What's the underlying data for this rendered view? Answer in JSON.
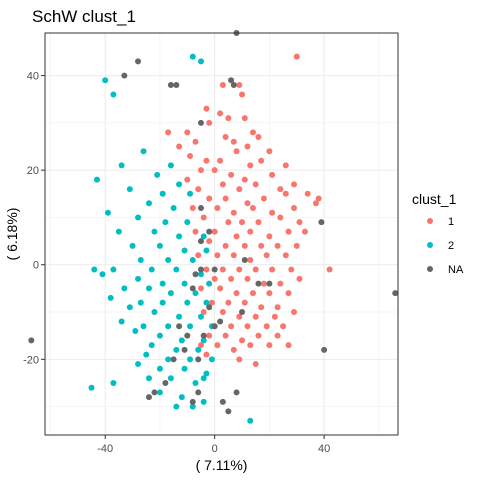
{
  "chart_data": {
    "type": "scatter",
    "title": "SchW clust_1",
    "xlabel": "( 7.11%)",
    "ylabel": "( 6.18%)",
    "xlim": [
      -62,
      67
    ],
    "ylim": [
      -36,
      49
    ],
    "x_ticks": [
      -40,
      0,
      40
    ],
    "y_ticks": [
      -20,
      0,
      20,
      40
    ],
    "grid": true,
    "legend_position": "right",
    "legend_title": "clust_1",
    "series": [
      {
        "name": "1",
        "color": "#F8766D",
        "points": [
          [
            30,
            44
          ],
          [
            3,
            38
          ],
          [
            9,
            38
          ],
          [
            10,
            36
          ],
          [
            2,
            32
          ],
          [
            5,
            31
          ],
          [
            -2,
            30
          ],
          [
            -3,
            33
          ],
          [
            11,
            31
          ],
          [
            14,
            28
          ],
          [
            -10,
            28
          ],
          [
            -17,
            28
          ],
          [
            -13,
            25
          ],
          [
            -7,
            26
          ],
          [
            4,
            27
          ],
          [
            7,
            26
          ],
          [
            12,
            25
          ],
          [
            16,
            27
          ],
          [
            -9,
            23
          ],
          [
            -3,
            22
          ],
          [
            2,
            22
          ],
          [
            8,
            24
          ],
          [
            17,
            22
          ],
          [
            20,
            24
          ],
          [
            -5,
            20
          ],
          [
            0,
            20
          ],
          [
            6,
            19
          ],
          [
            11,
            18
          ],
          [
            13,
            21
          ],
          [
            21,
            19
          ],
          [
            26,
            21
          ],
          [
            -10,
            18
          ],
          [
            -6,
            16
          ],
          [
            3,
            17
          ],
          [
            9,
            16
          ],
          [
            15,
            17
          ],
          [
            24,
            16
          ],
          [
            29,
            17
          ],
          [
            -2,
            14
          ],
          [
            4,
            14
          ],
          [
            12,
            13
          ],
          [
            18,
            14
          ],
          [
            26,
            15
          ],
          [
            34,
            15
          ],
          [
            38,
            14
          ],
          [
            -8,
            12
          ],
          [
            1,
            12
          ],
          [
            7,
            11
          ],
          [
            14,
            12
          ],
          [
            21,
            11
          ],
          [
            29,
            12
          ],
          [
            37,
            13
          ],
          [
            -4,
            10
          ],
          [
            5,
            9
          ],
          [
            10,
            9
          ],
          [
            16,
            9
          ],
          [
            24,
            10
          ],
          [
            31,
            9
          ],
          [
            -7,
            7
          ],
          [
            0,
            7
          ],
          [
            8,
            6
          ],
          [
            13,
            7
          ],
          [
            20,
            6
          ],
          [
            27,
            7
          ],
          [
            33,
            7
          ],
          [
            -2,
            5
          ],
          [
            4,
            4
          ],
          [
            11,
            4
          ],
          [
            17,
            4
          ],
          [
            23,
            4
          ],
          [
            30,
            4
          ],
          [
            -6,
            2
          ],
          [
            1,
            2
          ],
          [
            7,
            2
          ],
          [
            13,
            1
          ],
          [
            19,
            2
          ],
          [
            26,
            2
          ],
          [
            -3,
            -1
          ],
          [
            3,
            -1
          ],
          [
            9,
            -1
          ],
          [
            15,
            -1
          ],
          [
            21,
            -1
          ],
          [
            28,
            -1
          ],
          [
            42,
            -1
          ],
          [
            0,
            -3
          ],
          [
            6,
            -3
          ],
          [
            12,
            -3
          ],
          [
            18,
            -4
          ],
          [
            24,
            -4
          ],
          [
            31,
            -3
          ],
          [
            -5,
            -5
          ],
          [
            2,
            -5
          ],
          [
            8,
            -6
          ],
          [
            14,
            -6
          ],
          [
            20,
            -6
          ],
          [
            27,
            -6
          ],
          [
            -1,
            -8
          ],
          [
            5,
            -8
          ],
          [
            11,
            -8
          ],
          [
            17,
            -9
          ],
          [
            23,
            -9
          ],
          [
            -4,
            -10
          ],
          [
            3,
            -10
          ],
          [
            9,
            -11
          ],
          [
            15,
            -11
          ],
          [
            22,
            -11
          ],
          [
            29,
            -10
          ],
          [
            0,
            -13
          ],
          [
            6,
            -13
          ],
          [
            12,
            -13
          ],
          [
            19,
            -13
          ],
          [
            25,
            -13
          ],
          [
            -2,
            -15
          ],
          [
            4,
            -15
          ],
          [
            10,
            -16
          ],
          [
            16,
            -15
          ],
          [
            23,
            -15
          ],
          [
            -5,
            -17
          ],
          [
            1,
            -17
          ],
          [
            7,
            -18
          ],
          [
            13,
            -17
          ],
          [
            20,
            -17
          ],
          [
            27,
            -17
          ],
          [
            -3,
            -19
          ],
          [
            9,
            -20
          ],
          [
            15,
            -21
          ]
        ]
      },
      {
        "name": "2",
        "color": "#00BFC4",
        "points": [
          [
            -8,
            44
          ],
          [
            -5,
            43
          ],
          [
            -40,
            39
          ],
          [
            -37,
            36
          ],
          [
            -26,
            24
          ],
          [
            -16,
            21
          ],
          [
            -43,
            18
          ],
          [
            -34,
            21
          ],
          [
            -21,
            19
          ],
          [
            -13,
            17
          ],
          [
            -31,
            16
          ],
          [
            -19,
            15
          ],
          [
            -9,
            15
          ],
          [
            -24,
            13
          ],
          [
            -15,
            12
          ],
          [
            -39,
            11
          ],
          [
            -28,
            10
          ],
          [
            -18,
            9
          ],
          [
            -10,
            9
          ],
          [
            -35,
            7
          ],
          [
            -22,
            7
          ],
          [
            -13,
            6
          ],
          [
            -4,
            6
          ],
          [
            -30,
            4
          ],
          [
            -20,
            4
          ],
          [
            -11,
            3
          ],
          [
            -3,
            3
          ],
          [
            -27,
            1
          ],
          [
            -17,
            1
          ],
          [
            -8,
            1
          ],
          [
            -44,
            -1
          ],
          [
            -37,
            -1
          ],
          [
            -23,
            -1
          ],
          [
            -14,
            -1
          ],
          [
            -5,
            -2
          ],
          [
            -41,
            -2
          ],
          [
            -28,
            -3
          ],
          [
            -19,
            -4
          ],
          [
            -11,
            -4
          ],
          [
            -2,
            -4
          ],
          [
            -33,
            -5
          ],
          [
            -24,
            -5
          ],
          [
            -16,
            -6
          ],
          [
            -7,
            -6
          ],
          [
            -38,
            -7
          ],
          [
            -27,
            -8
          ],
          [
            -19,
            -8
          ],
          [
            -10,
            -8
          ],
          [
            -3,
            -8
          ],
          [
            -31,
            -9
          ],
          [
            -22,
            -10
          ],
          [
            -13,
            -11
          ],
          [
            -5,
            -11
          ],
          [
            -34,
            -12
          ],
          [
            -26,
            -13
          ],
          [
            -17,
            -13
          ],
          [
            -9,
            -13
          ],
          [
            -1,
            -13
          ],
          [
            -29,
            -14
          ],
          [
            -20,
            -15
          ],
          [
            -12,
            -16
          ],
          [
            -4,
            -16
          ],
          [
            -23,
            -17
          ],
          [
            -14,
            -18
          ],
          [
            -6,
            -18
          ],
          [
            -25,
            -19
          ],
          [
            -17,
            -20
          ],
          [
            -9,
            -20
          ],
          [
            -1,
            -20
          ],
          [
            -28,
            -21
          ],
          [
            -20,
            -22
          ],
          [
            -11,
            -22
          ],
          [
            -3,
            -23
          ],
          [
            -24,
            -24
          ],
          [
            -16,
            -24
          ],
          [
            -7,
            -25
          ],
          [
            -45,
            -26
          ],
          [
            -37,
            -25
          ],
          [
            -20,
            -27
          ],
          [
            -12,
            -28
          ],
          [
            -4,
            -29
          ],
          [
            -14,
            -30
          ],
          [
            -8,
            -30
          ],
          [
            13,
            -33
          ],
          [
            -4,
            -24
          ]
        ]
      },
      {
        "name": "NA",
        "color": "#666666",
        "points": [
          [
            8,
            49
          ],
          [
            -28,
            43
          ],
          [
            -33,
            40
          ],
          [
            6,
            39
          ],
          [
            7,
            38
          ],
          [
            -16,
            38
          ],
          [
            -14,
            38
          ],
          [
            -5,
            30
          ],
          [
            -5,
            12
          ],
          [
            -5,
            5
          ],
          [
            -2,
            7
          ],
          [
            -5,
            -1
          ],
          [
            -8,
            -5
          ],
          [
            -4,
            -15
          ],
          [
            -10,
            -15
          ],
          [
            -11,
            -18
          ],
          [
            -6,
            -20
          ],
          [
            -13,
            -13
          ],
          [
            -2,
            -9
          ],
          [
            -18,
            -25
          ],
          [
            -24,
            -28
          ],
          [
            -22,
            -27
          ],
          [
            -6,
            -27
          ],
          [
            -8,
            -29
          ],
          [
            3,
            -29
          ],
          [
            5,
            -31
          ],
          [
            8,
            -27
          ],
          [
            0,
            -13
          ],
          [
            2,
            -12
          ],
          [
            -15,
            -20
          ],
          [
            11,
            1
          ],
          [
            16,
            -4
          ],
          [
            20,
            -4
          ],
          [
            39,
            9
          ],
          [
            40,
            -18
          ],
          [
            66,
            -6
          ],
          [
            -67,
            -16
          ],
          [
            -7,
            -2
          ],
          [
            0,
            -1
          ],
          [
            10,
            -10
          ]
        ]
      }
    ]
  }
}
